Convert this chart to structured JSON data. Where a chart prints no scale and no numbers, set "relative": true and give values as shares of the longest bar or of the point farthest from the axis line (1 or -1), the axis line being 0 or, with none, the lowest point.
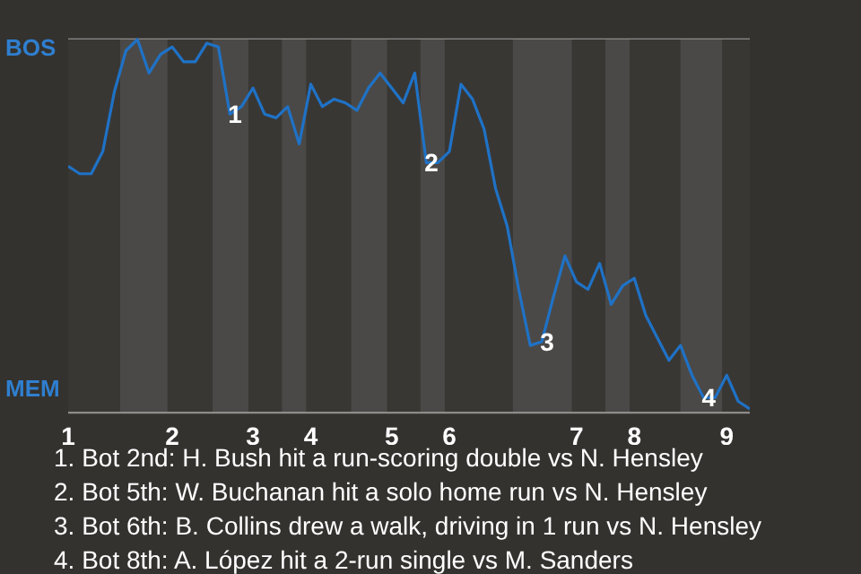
{
  "chart_data": {
    "type": "line",
    "relative": true,
    "categories": [
      "1",
      null,
      null,
      null,
      null,
      null,
      null,
      null,
      null,
      "2",
      null,
      null,
      null,
      null,
      null,
      null,
      "3",
      null,
      null,
      null,
      null,
      "4",
      null,
      null,
      null,
      null,
      null,
      null,
      "5",
      null,
      null,
      null,
      null,
      "6",
      null,
      null,
      null,
      null,
      null,
      null,
      null,
      null,
      null,
      null,
      "7",
      null,
      null,
      null,
      null,
      "8",
      null,
      null,
      null,
      null,
      null,
      null,
      null,
      "9",
      null,
      null
    ],
    "series": [
      {
        "color": "#1f72c6",
        "values": [
          0.66,
          0.64,
          0.64,
          0.7,
          0.86,
          0.97,
          1,
          0.91,
          0.96,
          0.98,
          0.94,
          0.94,
          0.99,
          0.98,
          0.8,
          0.82,
          0.87,
          0.8,
          0.79,
          0.82,
          0.72,
          0.88,
          0.82,
          0.84,
          0.83,
          0.81,
          0.87,
          0.91,
          0.87,
          0.83,
          0.91,
          0.67,
          0.67,
          0.7,
          0.88,
          0.84,
          0.76,
          0.6,
          0.5,
          0.33,
          0.18,
          0.19,
          0.31,
          0.42,
          0.35,
          0.33,
          0.4,
          0.29,
          0.34,
          0.36,
          0.26,
          0.2,
          0.14,
          0.18,
          0.1,
          0.04,
          0.04,
          0.1,
          0.03,
          0.01
        ]
      }
    ],
    "grid": "y",
    "annotations": [
      "BOS",
      "MEM",
      {
        "text": "1",
        "y": 0.8
      },
      {
        "text": "2",
        "y": 0.67
      },
      {
        "text": "3",
        "y": 0.19
      },
      {
        "text": "4",
        "y": 0.04
      },
      "1. Bot 2nd: H. Bush hit a run-scoring double vs N. Hensley",
      "2. Bot 5th: W. Buchanan hit a solo home run vs N. Hensley",
      "3. Bot 6th: B. Collins drew a walk, driving in 1 run vs N. Hensley",
      "4. Bot 8th: A. López hit a 2-run single vs M. Sanders"
    ]
  }
}
